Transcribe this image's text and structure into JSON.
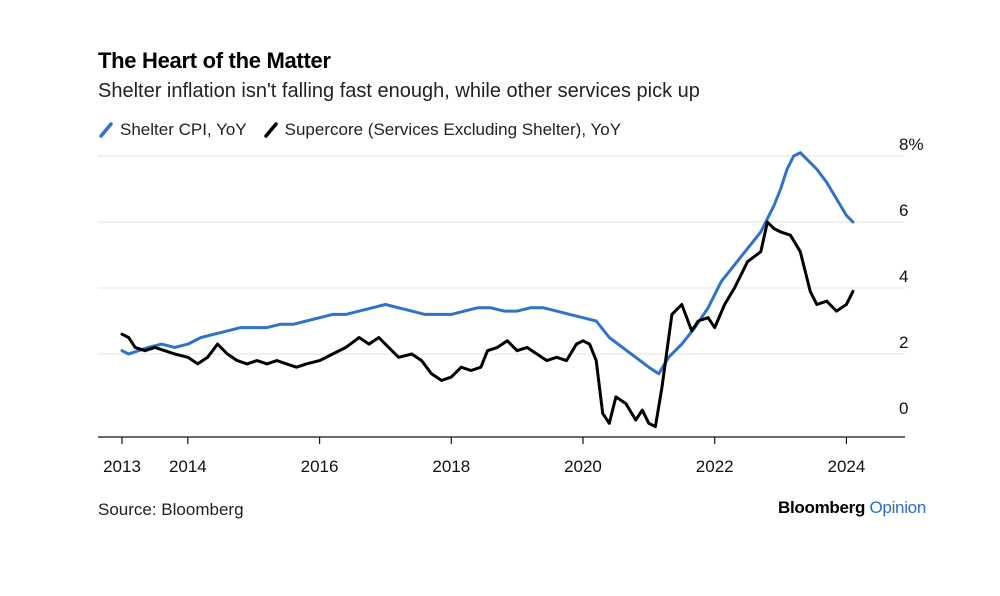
{
  "header": {
    "title": "The Heart of the Matter",
    "subtitle": "Shelter inflation isn't falling fast enough, while other services pick up"
  },
  "footer": {
    "source": "Source: Bloomberg",
    "brand_primary": "Bloomberg",
    "brand_secondary": "Opinion"
  },
  "colors": {
    "shelter": "#2f72c9",
    "supercore": "#000000",
    "grid": "#e3e3e3",
    "brand_accent": "#2b6ec3"
  },
  "chart_data": {
    "type": "line",
    "title": "The Heart of the Matter",
    "subtitle": "Shelter inflation isn't falling fast enough, while other services pick up",
    "xlabel": "",
    "ylabel": "",
    "xlim": [
      2013,
      2024.8
    ],
    "ylim": [
      -0.5,
      8.3
    ],
    "x_ticks": [
      {
        "value": 2013,
        "label": "2013"
      },
      {
        "value": 2014,
        "label": "2014"
      },
      {
        "value": 2016,
        "label": "2016"
      },
      {
        "value": 2018,
        "label": "2018"
      },
      {
        "value": 2020,
        "label": "2020"
      },
      {
        "value": 2022,
        "label": "2022"
      },
      {
        "value": 2024,
        "label": "2024"
      }
    ],
    "y_ticks": [
      {
        "value": 8,
        "label": "8%"
      },
      {
        "value": 6,
        "label": "6"
      },
      {
        "value": 4,
        "label": "4"
      },
      {
        "value": 2,
        "label": "2"
      },
      {
        "value": 0,
        "label": "0"
      }
    ],
    "grid": true,
    "legend_position": "top-left",
    "series": [
      {
        "name": "Shelter CPI, YoY",
        "color": "#2f72c9",
        "points": [
          [
            2013.0,
            2.1
          ],
          [
            2013.1,
            2.0
          ],
          [
            2013.25,
            2.1
          ],
          [
            2013.4,
            2.2
          ],
          [
            2013.6,
            2.3
          ],
          [
            2013.8,
            2.2
          ],
          [
            2014.0,
            2.3
          ],
          [
            2014.2,
            2.5
          ],
          [
            2014.4,
            2.6
          ],
          [
            2014.6,
            2.7
          ],
          [
            2014.8,
            2.8
          ],
          [
            2015.0,
            2.8
          ],
          [
            2015.2,
            2.8
          ],
          [
            2015.4,
            2.9
          ],
          [
            2015.6,
            2.9
          ],
          [
            2015.8,
            3.0
          ],
          [
            2016.0,
            3.1
          ],
          [
            2016.2,
            3.2
          ],
          [
            2016.4,
            3.2
          ],
          [
            2016.6,
            3.3
          ],
          [
            2016.8,
            3.4
          ],
          [
            2017.0,
            3.5
          ],
          [
            2017.2,
            3.4
          ],
          [
            2017.4,
            3.3
          ],
          [
            2017.6,
            3.2
          ],
          [
            2017.8,
            3.2
          ],
          [
            2018.0,
            3.2
          ],
          [
            2018.2,
            3.3
          ],
          [
            2018.4,
            3.4
          ],
          [
            2018.6,
            3.4
          ],
          [
            2018.8,
            3.3
          ],
          [
            2019.0,
            3.3
          ],
          [
            2019.2,
            3.4
          ],
          [
            2019.4,
            3.4
          ],
          [
            2019.6,
            3.3
          ],
          [
            2019.8,
            3.2
          ],
          [
            2020.0,
            3.1
          ],
          [
            2020.2,
            3.0
          ],
          [
            2020.4,
            2.5
          ],
          [
            2020.6,
            2.2
          ],
          [
            2020.8,
            1.9
          ],
          [
            2021.0,
            1.6
          ],
          [
            2021.15,
            1.4
          ],
          [
            2021.3,
            1.9
          ],
          [
            2021.5,
            2.3
          ],
          [
            2021.7,
            2.8
          ],
          [
            2021.9,
            3.4
          ],
          [
            2022.1,
            4.2
          ],
          [
            2022.3,
            4.7
          ],
          [
            2022.5,
            5.2
          ],
          [
            2022.7,
            5.7
          ],
          [
            2022.9,
            6.5
          ],
          [
            2023.0,
            7.0
          ],
          [
            2023.1,
            7.6
          ],
          [
            2023.2,
            8.0
          ],
          [
            2023.3,
            8.1
          ],
          [
            2023.4,
            7.9
          ],
          [
            2023.55,
            7.6
          ],
          [
            2023.7,
            7.2
          ],
          [
            2023.85,
            6.7
          ],
          [
            2024.0,
            6.2
          ],
          [
            2024.1,
            6.0
          ]
        ]
      },
      {
        "name": "Supercore (Services Excluding Shelter), YoY",
        "color": "#000000",
        "points": [
          [
            2013.0,
            2.6
          ],
          [
            2013.1,
            2.5
          ],
          [
            2013.2,
            2.2
          ],
          [
            2013.35,
            2.1
          ],
          [
            2013.5,
            2.2
          ],
          [
            2013.65,
            2.1
          ],
          [
            2013.8,
            2.0
          ],
          [
            2014.0,
            1.9
          ],
          [
            2014.15,
            1.7
          ],
          [
            2014.3,
            1.9
          ],
          [
            2014.45,
            2.3
          ],
          [
            2014.6,
            2.0
          ],
          [
            2014.75,
            1.8
          ],
          [
            2014.9,
            1.7
          ],
          [
            2015.05,
            1.8
          ],
          [
            2015.2,
            1.7
          ],
          [
            2015.35,
            1.8
          ],
          [
            2015.5,
            1.7
          ],
          [
            2015.65,
            1.6
          ],
          [
            2015.8,
            1.7
          ],
          [
            2016.0,
            1.8
          ],
          [
            2016.2,
            2.0
          ],
          [
            2016.4,
            2.2
          ],
          [
            2016.6,
            2.5
          ],
          [
            2016.75,
            2.3
          ],
          [
            2016.9,
            2.5
          ],
          [
            2017.05,
            2.2
          ],
          [
            2017.2,
            1.9
          ],
          [
            2017.4,
            2.0
          ],
          [
            2017.55,
            1.8
          ],
          [
            2017.7,
            1.4
          ],
          [
            2017.85,
            1.2
          ],
          [
            2018.0,
            1.3
          ],
          [
            2018.15,
            1.6
          ],
          [
            2018.3,
            1.5
          ],
          [
            2018.45,
            1.6
          ],
          [
            2018.55,
            2.1
          ],
          [
            2018.7,
            2.2
          ],
          [
            2018.85,
            2.4
          ],
          [
            2019.0,
            2.1
          ],
          [
            2019.15,
            2.2
          ],
          [
            2019.3,
            2.0
          ],
          [
            2019.45,
            1.8
          ],
          [
            2019.6,
            1.9
          ],
          [
            2019.75,
            1.8
          ],
          [
            2019.9,
            2.3
          ],
          [
            2020.0,
            2.4
          ],
          [
            2020.1,
            2.3
          ],
          [
            2020.2,
            1.8
          ],
          [
            2020.3,
            0.2
          ],
          [
            2020.4,
            -0.1
          ],
          [
            2020.5,
            0.7
          ],
          [
            2020.65,
            0.5
          ],
          [
            2020.8,
            0.0
          ],
          [
            2020.9,
            0.3
          ],
          [
            2021.0,
            -0.1
          ],
          [
            2021.1,
            -0.2
          ],
          [
            2021.2,
            1.0
          ],
          [
            2021.35,
            3.2
          ],
          [
            2021.5,
            3.5
          ],
          [
            2021.65,
            2.7
          ],
          [
            2021.75,
            3.0
          ],
          [
            2021.9,
            3.1
          ],
          [
            2022.0,
            2.8
          ],
          [
            2022.15,
            3.5
          ],
          [
            2022.3,
            4.0
          ],
          [
            2022.5,
            4.8
          ],
          [
            2022.7,
            5.1
          ],
          [
            2022.8,
            6.0
          ],
          [
            2022.9,
            5.8
          ],
          [
            2023.0,
            5.7
          ],
          [
            2023.15,
            5.6
          ],
          [
            2023.3,
            5.1
          ],
          [
            2023.45,
            3.9
          ],
          [
            2023.55,
            3.5
          ],
          [
            2023.7,
            3.6
          ],
          [
            2023.85,
            3.3
          ],
          [
            2024.0,
            3.5
          ],
          [
            2024.1,
            3.9
          ]
        ]
      }
    ]
  }
}
